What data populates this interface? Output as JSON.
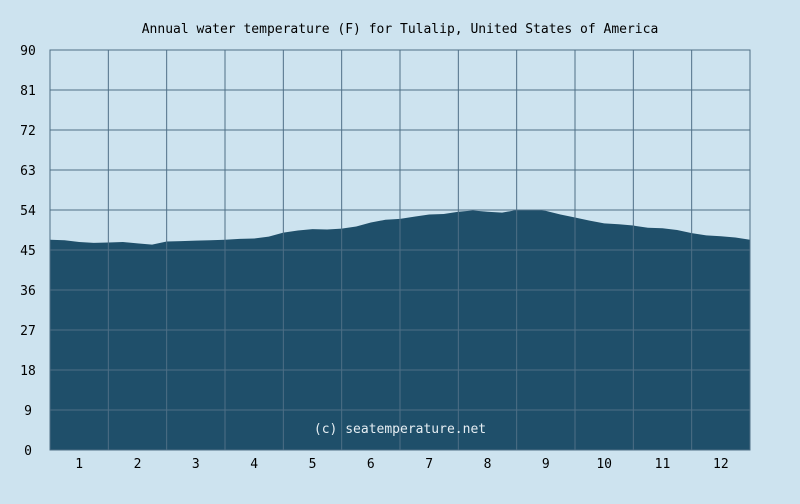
{
  "chart_data": {
    "type": "area",
    "title": "Annual water temperature (F) for Tulalip, United States of America",
    "xlabel": "",
    "ylabel": "",
    "ylim": [
      0,
      90
    ],
    "yticks": [
      "0",
      "9",
      "18",
      "27",
      "36",
      "45",
      "54",
      "63",
      "72",
      "81",
      "90"
    ],
    "categories": [
      "1",
      "2",
      "3",
      "4",
      "5",
      "6",
      "7",
      "8",
      "9",
      "10",
      "11",
      "12"
    ],
    "grid": true,
    "legend": "none",
    "watermark": "(c) seatemperature.net",
    "colors": {
      "background": "#cde3ef",
      "fill": "#1f4f6a",
      "grid": "#4f6f86"
    },
    "x": [
      0.0,
      0.25,
      0.5,
      0.75,
      1.0,
      1.25,
      1.5,
      1.75,
      2.0,
      2.25,
      2.5,
      2.75,
      3.0,
      3.25,
      3.5,
      3.75,
      4.0,
      4.25,
      4.5,
      4.75,
      5.0,
      5.25,
      5.5,
      5.75,
      6.0,
      6.25,
      6.5,
      6.75,
      7.0,
      7.25,
      7.5,
      7.75,
      8.0,
      8.25,
      8.5,
      8.75,
      9.0,
      9.25,
      9.5,
      9.75,
      10.0,
      10.25,
      10.5,
      10.75,
      11.0,
      11.25,
      11.5,
      11.75,
      12.0
    ],
    "values": [
      47.3,
      47.2,
      46.8,
      46.6,
      46.7,
      46.8,
      46.5,
      46.2,
      46.9,
      47.0,
      47.1,
      47.2,
      47.3,
      47.5,
      47.6,
      48.0,
      48.9,
      49.4,
      49.7,
      49.6,
      49.8,
      50.3,
      51.2,
      51.8,
      52.0,
      52.5,
      53.0,
      53.1,
      53.6,
      53.9,
      53.6,
      53.4,
      54.0,
      54.1,
      53.8,
      53.0,
      52.3,
      51.6,
      51.0,
      50.8,
      50.5,
      50.0,
      49.9,
      49.5,
      48.8,
      48.3,
      48.1,
      47.8,
      47.3
    ]
  }
}
